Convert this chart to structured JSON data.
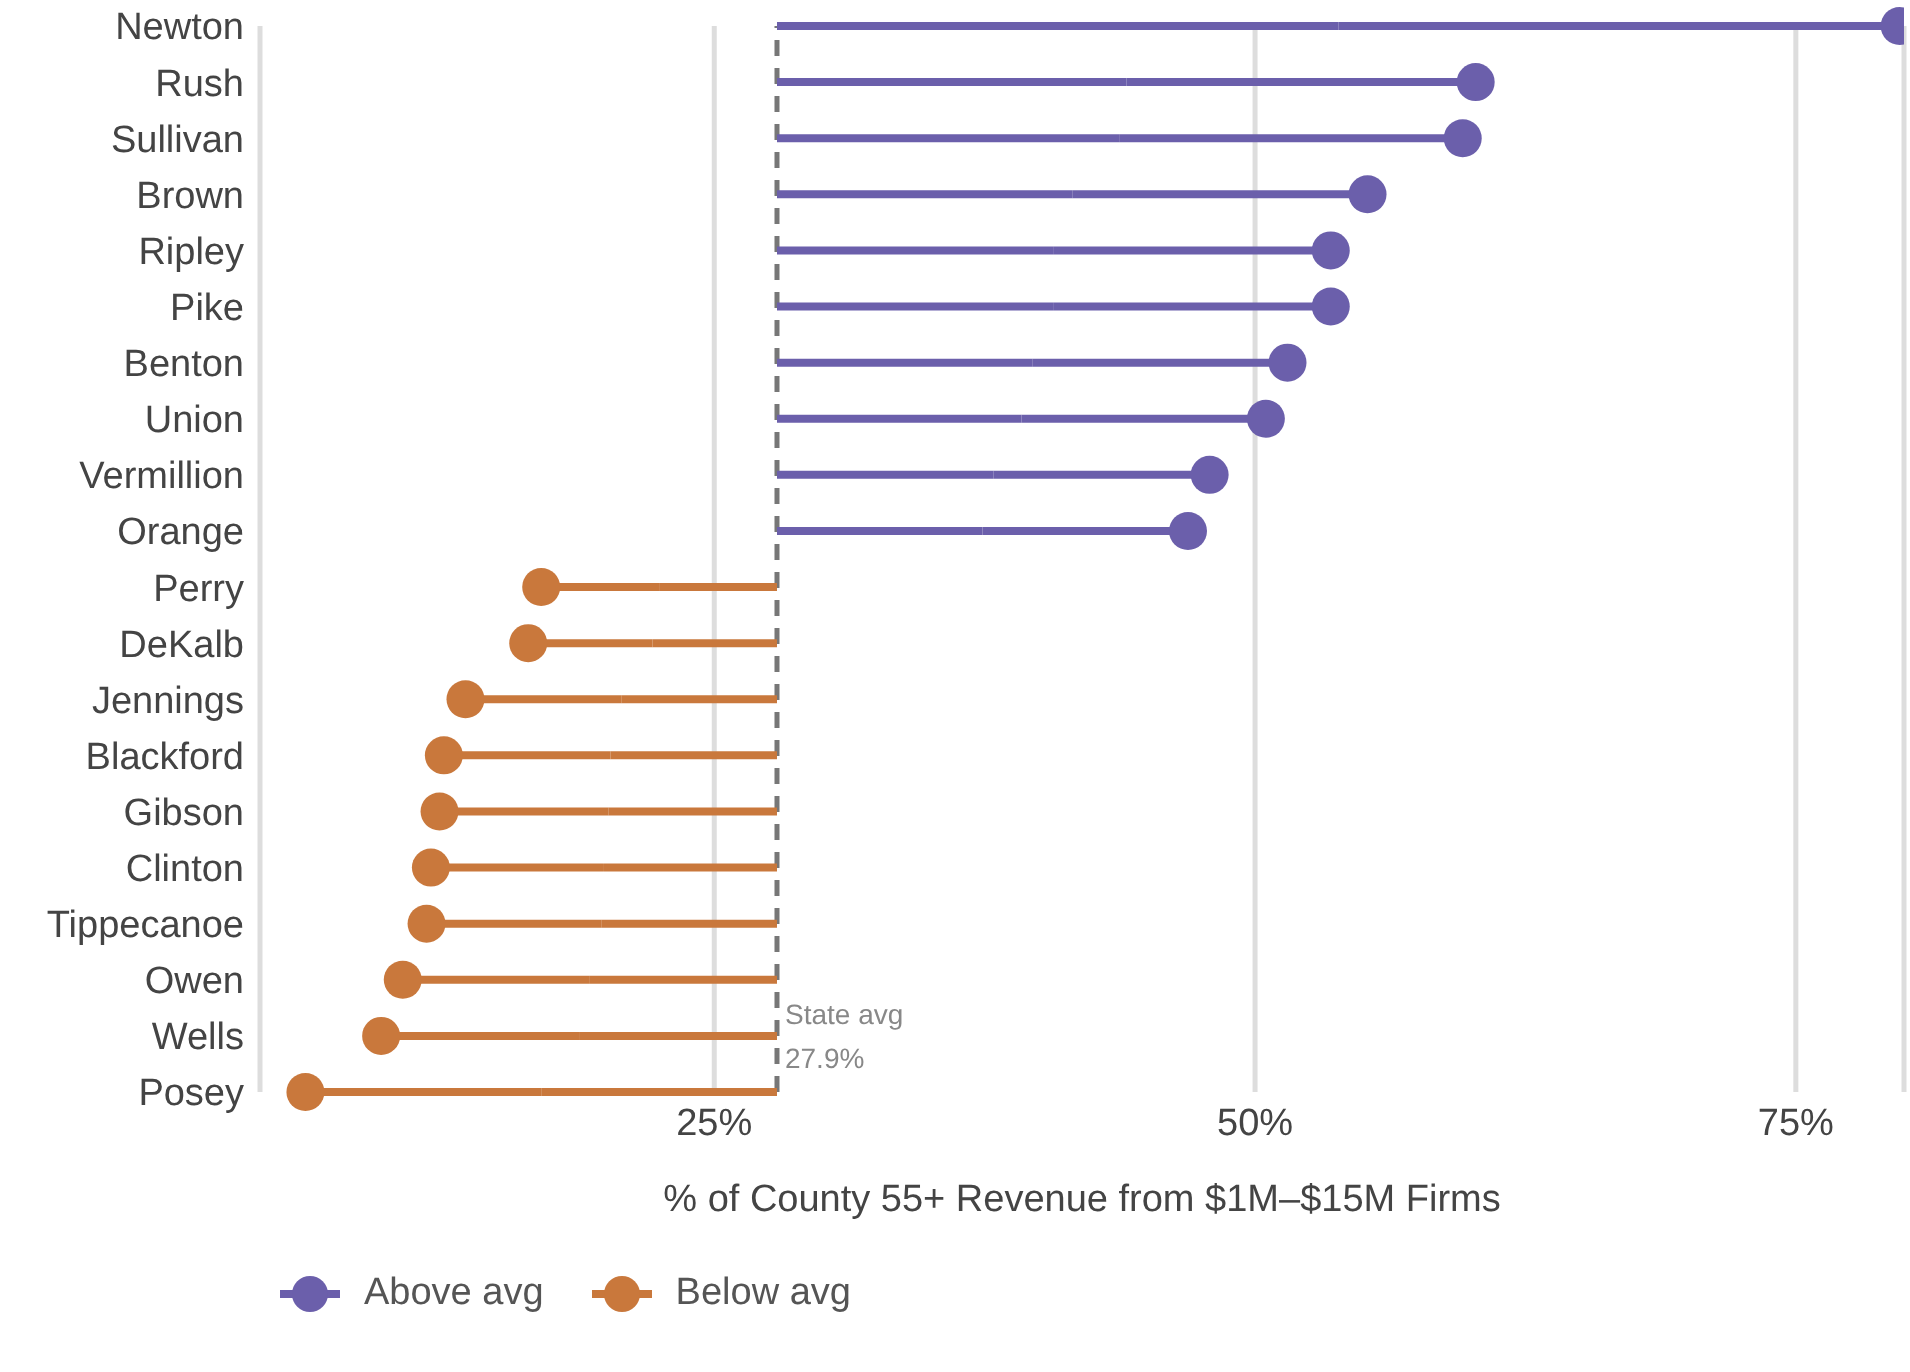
{
  "chart_data": {
    "type": "lollipop",
    "orientation": "horizontal",
    "xlabel": "% of County 55+ Revenue from $1M–$15M Firms",
    "categories": [
      "Newton",
      "Rush",
      "Sullivan",
      "Brown",
      "Ripley",
      "Pike",
      "Benton",
      "Union",
      "Vermillion",
      "Orange",
      "Perry",
      "DeKalb",
      "Jennings",
      "Blackford",
      "Gibson",
      "Clinton",
      "Tippecanoe",
      "Owen",
      "Wells",
      "Posey"
    ],
    "series": [
      {
        "name": "Above avg",
        "color": "#6b5fab",
        "values": [
          79.8,
          60.2,
          59.6,
          55.2,
          53.5,
          53.5,
          51.5,
          50.5,
          47.9,
          46.9,
          null,
          null,
          null,
          null,
          null,
          null,
          null,
          null,
          null,
          null
        ]
      },
      {
        "name": "Below avg",
        "color": "#c9783c",
        "values": [
          null,
          null,
          null,
          null,
          null,
          null,
          null,
          null,
          null,
          null,
          17.0,
          16.4,
          13.5,
          12.5,
          12.3,
          11.9,
          11.7,
          10.6,
          9.6,
          6.1
        ]
      }
    ],
    "xlim": [
      4,
      80
    ],
    "xticks": [
      {
        "value": 25,
        "label": "25%"
      },
      {
        "value": 50,
        "label": "50%"
      },
      {
        "value": 75,
        "label": "75%"
      }
    ],
    "ref_lines": [
      {
        "axis": "x",
        "value": 27.9,
        "label": "State avg\n27.9%",
        "color": "#777777",
        "line_style": "dashed"
      }
    ],
    "grid": "x",
    "legend": "bottom",
    "marker": "circle"
  }
}
